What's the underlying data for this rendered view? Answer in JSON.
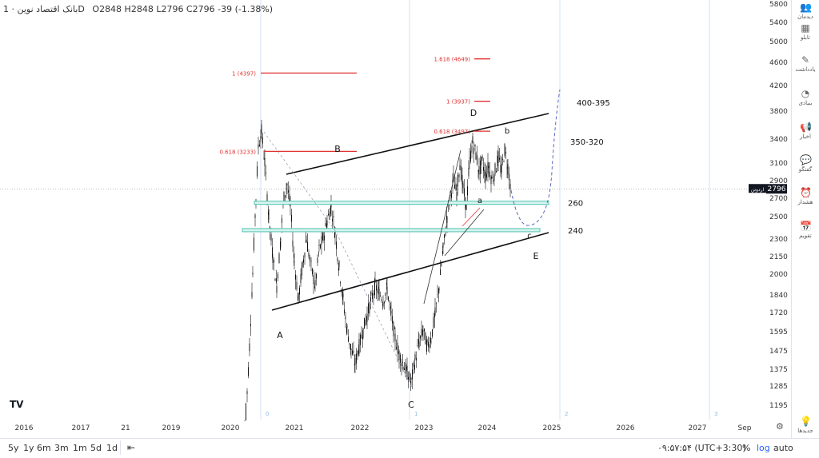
{
  "header": {
    "symbol": "بانک اقتصاد نوین",
    "interval": "1D",
    "ohlc": "O2848 H2848 L2796 C2796 -39 (-1.38%)"
  },
  "chart_data": {
    "type": "candlestick",
    "x_axis_labels": [
      "2016",
      "2017",
      "21",
      "2019",
      "2020",
      "2021",
      "2022",
      "2023",
      "2024",
      "2025",
      "2026",
      "2027",
      "Sep"
    ],
    "y_axis_labels": [
      "5800",
      "5400",
      "5000",
      "4600",
      "4200",
      "3800",
      "3400",
      "3100",
      "2900",
      "2700",
      "2500",
      "2300",
      "2150",
      "2000",
      "1840",
      "1720",
      "1595",
      "1475",
      "1375",
      "1285",
      "1195"
    ],
    "last_price": "2796",
    "last_price_label": "اردوتن",
    "fib_levels": [
      {
        "label": "1 (4397)",
        "value": 4397
      },
      {
        "label": "0.618 (3233)",
        "value": 3233
      },
      {
        "label": "1.618 (4649)",
        "value": 4649
      },
      {
        "label": "1 (3937)",
        "value": 3937
      },
      {
        "label": "0.618 (3497)",
        "value": 3497
      }
    ],
    "zones": [
      {
        "label": "260",
        "value": 2640
      },
      {
        "label": "240",
        "value": 2370
      }
    ],
    "target_labels": [
      "400-395",
      "350-320"
    ],
    "wave_labels": [
      "A",
      "B",
      "C",
      "D",
      "E",
      "a",
      "b",
      "c"
    ],
    "cycle_labels": [
      "0",
      "1",
      "2",
      "3"
    ]
  },
  "sidebar": [
    {
      "icon": "people-icon",
      "glyph": "👥",
      "label": "دیدمان"
    },
    {
      "icon": "calculator-icon",
      "glyph": "▦",
      "label": "تابلو"
    },
    {
      "icon": "notes-icon",
      "glyph": "✎",
      "label": "یادداشت"
    },
    {
      "icon": "fundamental-icon",
      "glyph": "◔",
      "label": "بنیادی"
    },
    {
      "icon": "news-icon",
      "glyph": "📢",
      "label": "اخبار"
    },
    {
      "icon": "chat-icon",
      "glyph": "💬",
      "label": "گفتگو"
    },
    {
      "icon": "alert-icon",
      "glyph": "⏰",
      "label": "هشدار"
    },
    {
      "icon": "calendar-icon",
      "glyph": "📅",
      "label": "تقویم"
    },
    {
      "icon": "lightbulb-icon",
      "glyph": "💡",
      "label": "جدیدها"
    }
  ],
  "bottom": {
    "timeframes": [
      "5y",
      "1y",
      "6m",
      "3m",
      "1m",
      "5d",
      "1d"
    ],
    "clock": "۰۹:۵۷:۵۴ (UTC+3:30)",
    "percent": "%",
    "log": "log",
    "auto": "auto"
  },
  "colors": {
    "fib": "#e03131",
    "zone": "#4fc3b0",
    "candle": "#111111",
    "cycle": "#cfe3f5",
    "channel": "#111111",
    "projection": "#5c6bc0"
  }
}
